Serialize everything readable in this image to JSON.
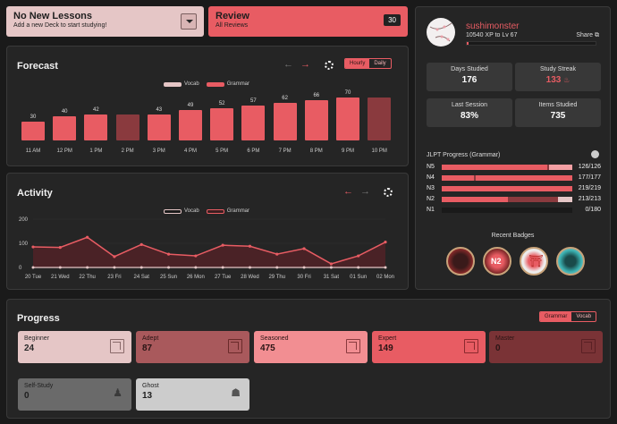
{
  "lessons": {
    "title": "No New Lessons",
    "subtitle": "Add a new Deck to start studying!"
  },
  "review": {
    "title": "Review",
    "subtitle": "All Reviews",
    "count": "30"
  },
  "forecast": {
    "title": "Forecast",
    "toggle": [
      "Hourly",
      "Daily"
    ],
    "legend": [
      "Vocab",
      "Grammar"
    ]
  },
  "activity": {
    "title": "Activity",
    "legend": [
      "Vocab",
      "Grammar"
    ]
  },
  "chart_data": [
    {
      "type": "bar",
      "title": "Forecast",
      "categories": [
        "11 AM",
        "12 PM",
        "1 PM",
        "2 PM",
        "3 PM",
        "4 PM",
        "5 PM",
        "6 PM",
        "7 PM",
        "8 PM",
        "9 PM",
        "10 PM"
      ],
      "series": [
        {
          "name": "Grammar",
          "values": [
            30,
            40,
            42,
            42,
            43,
            49,
            52,
            57,
            62,
            66,
            70,
            70
          ]
        }
      ],
      "labels": [
        "30",
        "40",
        "42",
        "",
        "43",
        "49",
        "52",
        "57",
        "62",
        "66",
        "70",
        ""
      ],
      "highlighted": [
        3,
        11
      ]
    },
    {
      "type": "area",
      "title": "Activity",
      "categories": [
        "20 Tue",
        "21 Wed",
        "22 Thu",
        "23 Fri",
        "24 Sat",
        "25 Sun",
        "26 Mon",
        "27 Tue",
        "28 Wed",
        "29 Thu",
        "30 Fri",
        "31 Sat",
        "01 Sun",
        "02 Mon"
      ],
      "series": [
        {
          "name": "Grammar",
          "values": [
            85,
            83,
            125,
            45,
            95,
            55,
            48,
            92,
            88,
            55,
            78,
            15,
            48,
            105
          ]
        },
        {
          "name": "Vocab",
          "values": [
            0,
            0,
            0,
            0,
            0,
            0,
            0,
            0,
            0,
            0,
            0,
            0,
            0,
            0
          ]
        }
      ],
      "yticks": [
        "0",
        "100",
        "200"
      ],
      "ylim": [
        0,
        200
      ]
    }
  ],
  "profile": {
    "username": "sushimonster",
    "xp": "10540 XP to Lv 67",
    "share": "Share",
    "stats": [
      {
        "label": "Days Studied",
        "value": "176"
      },
      {
        "label": "Study Streak",
        "value": "133"
      },
      {
        "label": "Last Session",
        "value": "83%"
      },
      {
        "label": "Items Studied",
        "value": "735"
      }
    ],
    "jlpt_title": "JLPT Progress (Grammar)",
    "jlpt": [
      {
        "level": "N5",
        "count": "126/126"
      },
      {
        "level": "N4",
        "count": "177/177"
      },
      {
        "level": "N3",
        "count": "219/219"
      },
      {
        "level": "N2",
        "count": "213/213"
      },
      {
        "level": "N1",
        "count": "0/180"
      }
    ],
    "badges_title": "Recent Badges"
  },
  "progress": {
    "title": "Progress",
    "toggle": [
      "Grammar",
      "Vocab"
    ],
    "levels": [
      {
        "name": "Beginner",
        "count": "24"
      },
      {
        "name": "Adept",
        "count": "87"
      },
      {
        "name": "Seasoned",
        "count": "475"
      },
      {
        "name": "Expert",
        "count": "149"
      },
      {
        "name": "Master",
        "count": "0"
      },
      {
        "name": "Self-Study",
        "count": "0"
      },
      {
        "name": "Ghost",
        "count": "13"
      }
    ]
  },
  "colors": {
    "accent": "#e85c63",
    "pink": "#e5c6c6",
    "dark_red": "#8a3a3e"
  }
}
